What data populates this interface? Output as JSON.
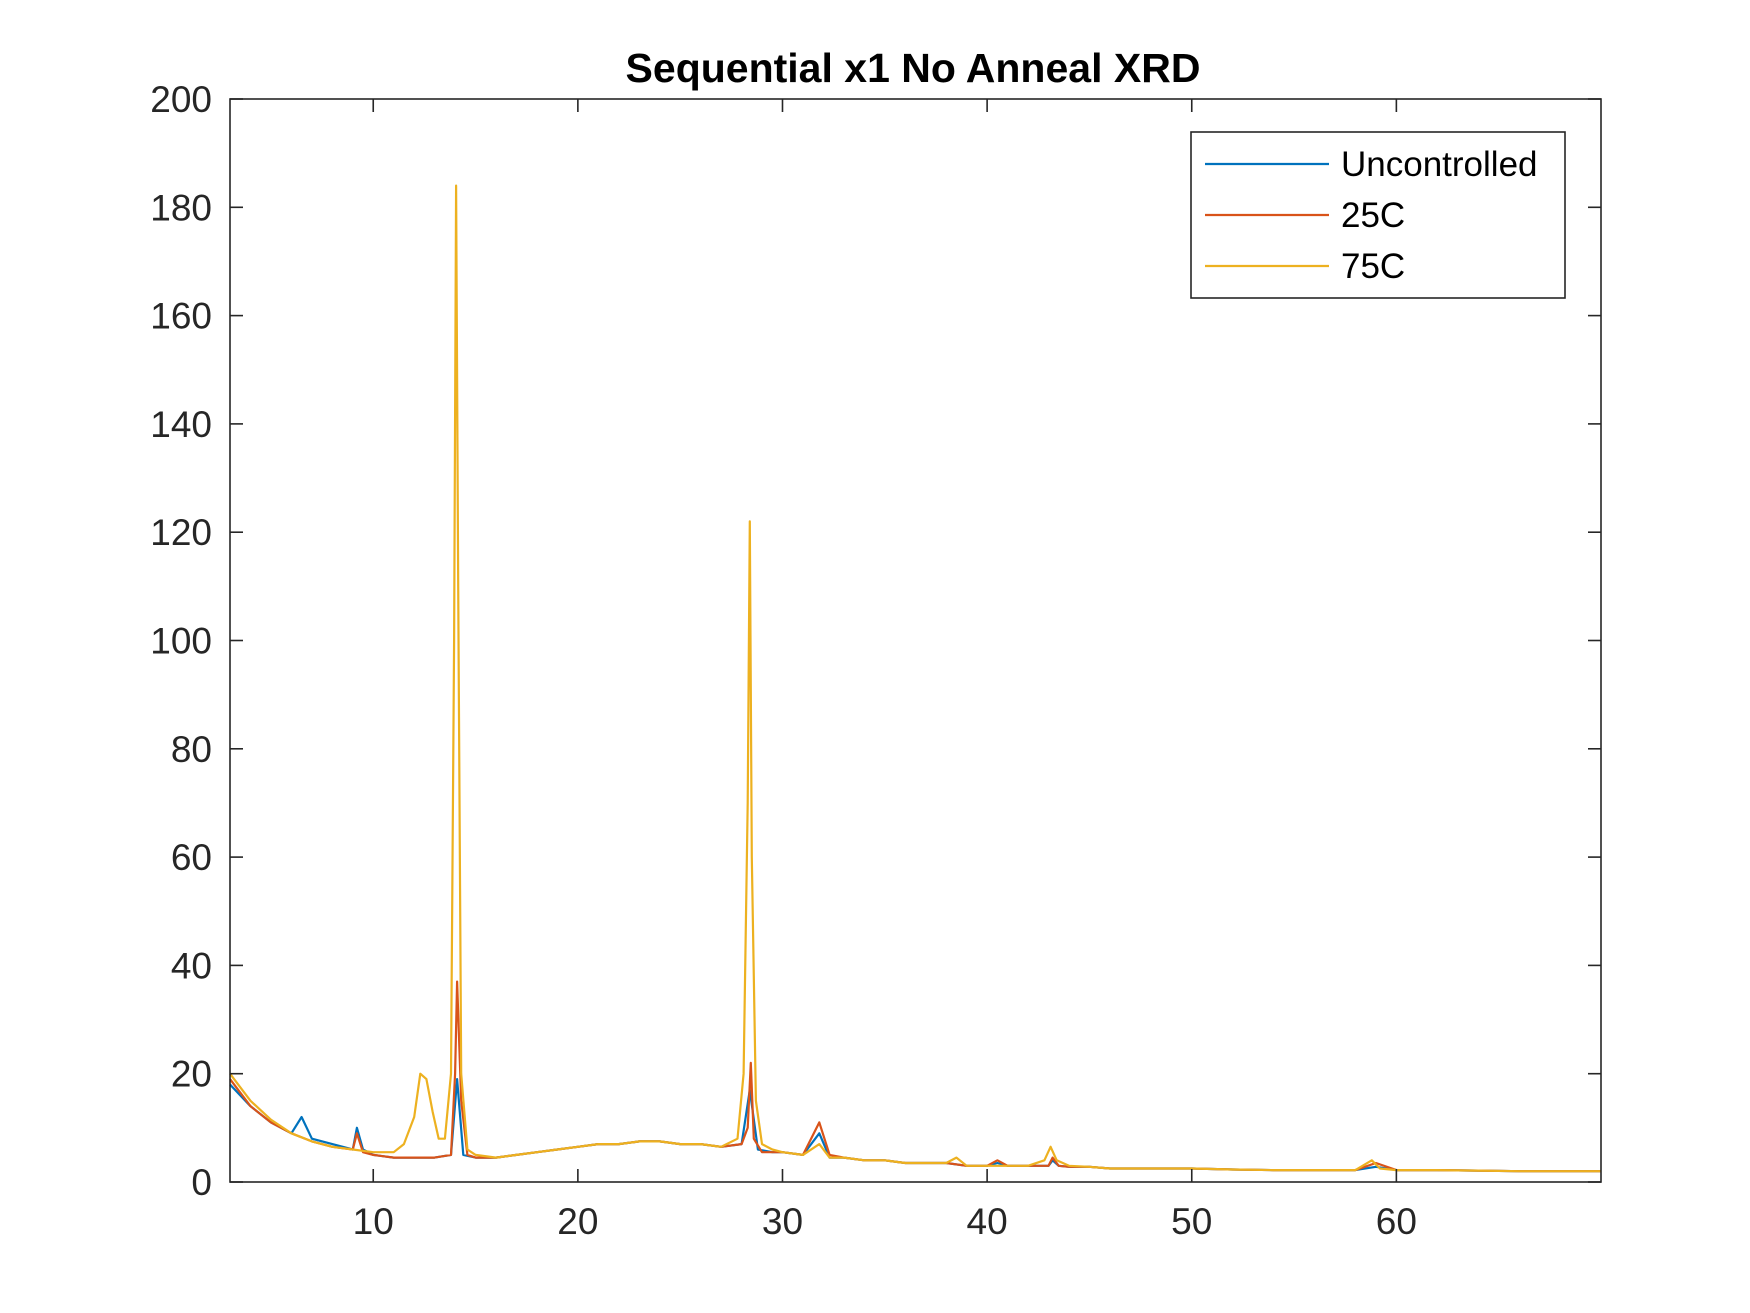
{
  "chart_data": {
    "type": "line",
    "title": "Sequential x1 No Anneal XRD",
    "xlabel": "",
    "ylabel": "",
    "xlim": [
      3,
      70
    ],
    "ylim": [
      0,
      200
    ],
    "xticks": [
      10,
      20,
      30,
      40,
      50,
      60
    ],
    "yticks": [
      0,
      20,
      40,
      60,
      80,
      100,
      120,
      140,
      160,
      180,
      200
    ],
    "grid": false,
    "legend_position": "top-right",
    "series": [
      {
        "name": "Uncontrolled",
        "color": "#0072BD",
        "x": [
          3,
          4,
          5,
          6,
          6.5,
          7,
          8,
          9,
          9.2,
          9.5,
          10,
          11,
          12,
          13,
          13.8,
          14.1,
          14.4,
          15,
          16,
          17,
          18,
          19,
          20,
          21,
          22,
          23,
          24,
          25,
          26,
          27,
          28,
          28.4,
          28.8,
          29.5,
          30,
          31,
          31.8,
          32.3,
          33,
          34,
          35,
          36,
          37,
          38,
          39,
          40,
          40.5,
          41,
          42,
          43,
          43.2,
          43.5,
          44,
          45,
          46,
          48,
          50,
          52,
          54,
          56,
          58,
          59,
          60,
          62,
          64,
          66,
          68,
          70
        ],
        "y": [
          18,
          14,
          11,
          9,
          12,
          8,
          7,
          6,
          10,
          6,
          5,
          4.5,
          4.5,
          4.5,
          5,
          19,
          5,
          4.5,
          4.5,
          5,
          5.5,
          6,
          6.5,
          7,
          7,
          7.5,
          7.5,
          7,
          7,
          6.5,
          7,
          17,
          6,
          5.5,
          5.5,
          5,
          9,
          4.5,
          4.5,
          4,
          4,
          3.5,
          3.5,
          3.5,
          3,
          3,
          3.5,
          3,
          3,
          3,
          4,
          3,
          2.8,
          2.8,
          2.5,
          2.5,
          2.5,
          2.3,
          2.2,
          2.2,
          2.2,
          2.8,
          2.2,
          2.2,
          2.1,
          2,
          2,
          2
        ]
      },
      {
        "name": "25C",
        "color": "#D95319",
        "x": [
          3,
          4,
          5,
          6,
          7,
          8,
          9,
          9.2,
          9.5,
          10,
          11,
          12,
          13,
          13.8,
          14.0,
          14.1,
          14.3,
          14.6,
          15,
          16,
          17,
          18,
          19,
          20,
          21,
          22,
          23,
          24,
          25,
          26,
          27,
          28,
          28.3,
          28.45,
          28.6,
          29,
          30,
          31,
          31.8,
          32.3,
          33,
          34,
          35,
          36,
          37,
          38,
          39,
          40,
          40.5,
          41,
          42,
          43,
          43.2,
          43.5,
          44,
          45,
          46,
          48,
          50,
          52,
          54,
          56,
          58,
          59,
          60,
          62,
          64,
          66,
          68,
          70
        ],
        "y": [
          19,
          14,
          11,
          9,
          7.5,
          6.5,
          6,
          9,
          5.5,
          5,
          4.5,
          4.5,
          4.5,
          5,
          20,
          37,
          15,
          5,
          4.5,
          4.5,
          5,
          5.5,
          6,
          6.5,
          7,
          7,
          7.5,
          7.5,
          7,
          7,
          6.5,
          7,
          10,
          22,
          8,
          5.5,
          5.5,
          5,
          11,
          5,
          4.5,
          4,
          4,
          3.5,
          3.5,
          3.5,
          3,
          3,
          4,
          3,
          3,
          3,
          4.5,
          3,
          2.8,
          2.8,
          2.5,
          2.5,
          2.5,
          2.3,
          2.2,
          2.2,
          2.2,
          3.5,
          2.2,
          2.2,
          2.1,
          2,
          2,
          2
        ]
      },
      {
        "name": "75C",
        "color": "#EDB120",
        "x": [
          3,
          4,
          5,
          6,
          7,
          8,
          9,
          10,
          11,
          11.5,
          12,
          12.3,
          12.6,
          12.9,
          13.2,
          13.5,
          13.8,
          13.95,
          14.05,
          14.15,
          14.3,
          14.6,
          15,
          16,
          17,
          18,
          19,
          20,
          21,
          22,
          23,
          24,
          25,
          26,
          27,
          27.8,
          28.1,
          28.3,
          28.4,
          28.5,
          28.7,
          29,
          29.5,
          30,
          31,
          31.8,
          32.3,
          33,
          34,
          35,
          36,
          37,
          38,
          38.5,
          39,
          40,
          41,
          42,
          42.8,
          43.1,
          43.4,
          44,
          45,
          46,
          48,
          50,
          52,
          54,
          56,
          58,
          58.8,
          59.2,
          60,
          62,
          64,
          66,
          68,
          70
        ],
        "y": [
          20,
          15,
          11.5,
          9,
          7.5,
          6.5,
          6,
          5.5,
          5.5,
          7,
          12,
          20,
          19,
          13,
          8,
          8,
          20,
          100,
          184,
          110,
          20,
          6,
          5,
          4.5,
          5,
          5.5,
          6,
          6.5,
          7,
          7,
          7.5,
          7.5,
          7,
          7,
          6.5,
          8,
          20,
          70,
          122,
          60,
          15,
          7,
          6,
          5.5,
          5,
          7,
          4.5,
          4.5,
          4,
          4,
          3.5,
          3.5,
          3.5,
          4.5,
          3,
          3,
          3,
          3,
          4,
          6.5,
          4,
          3,
          2.8,
          2.5,
          2.5,
          2.5,
          2.3,
          2.2,
          2.2,
          2.2,
          4,
          2.5,
          2.2,
          2.2,
          2.1,
          2,
          2,
          2
        ]
      }
    ]
  }
}
